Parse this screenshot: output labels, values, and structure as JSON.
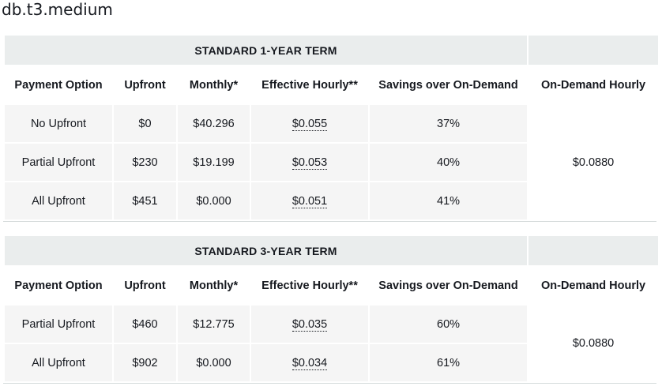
{
  "page": {
    "title": "db.t3.medium"
  },
  "columns": [
    "Payment Option",
    "Upfront",
    "Monthly*",
    "Effective Hourly**",
    "Savings over On-Demand",
    "On-Demand Hourly"
  ],
  "terms": [
    {
      "heading": "STANDARD 1-YEAR TERM",
      "on_demand_hourly": "$0.0880",
      "rows": [
        {
          "payment_option": "No Upfront",
          "upfront": "$0",
          "monthly": "$40.296",
          "effective_hourly": "$0.055",
          "savings": "37%"
        },
        {
          "payment_option": "Partial Upfront",
          "upfront": "$230",
          "monthly": "$19.199",
          "effective_hourly": "$0.053",
          "savings": "40%"
        },
        {
          "payment_option": "All Upfront",
          "upfront": "$451",
          "monthly": "$0.000",
          "effective_hourly": "$0.051",
          "savings": "41%"
        }
      ]
    },
    {
      "heading": "STANDARD 3-YEAR TERM",
      "on_demand_hourly": "$0.0880",
      "rows": [
        {
          "payment_option": "Partial Upfront",
          "upfront": "$460",
          "monthly": "$12.775",
          "effective_hourly": "$0.035",
          "savings": "60%"
        },
        {
          "payment_option": "All Upfront",
          "upfront": "$902",
          "monthly": "$0.000",
          "effective_hourly": "$0.034",
          "savings": "61%"
        }
      ]
    }
  ]
}
